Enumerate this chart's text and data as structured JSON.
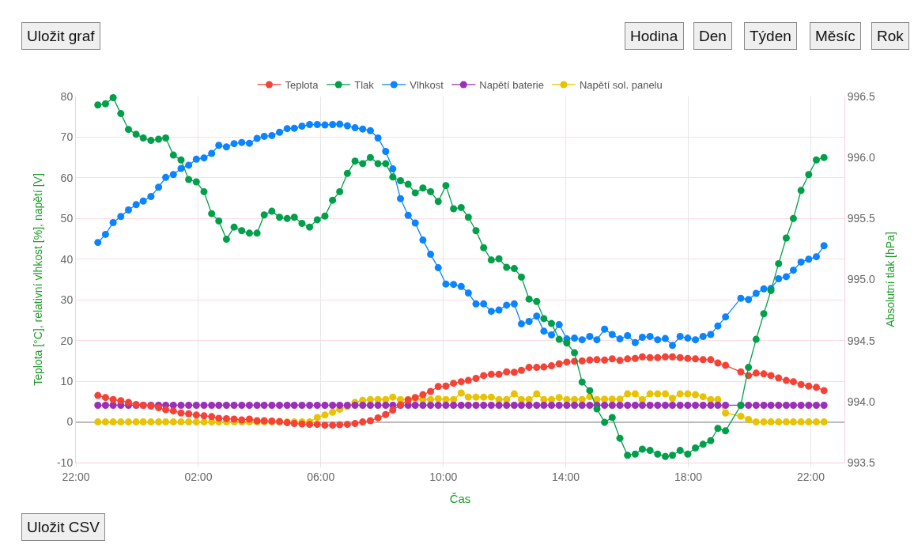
{
  "chart_data": {
    "type": "line",
    "xlabel": "Čas",
    "ylabel": "Teplota [°C], relativní vlhkost [%], napětí [V]",
    "y2label": "Absolutní tlak [hPa]",
    "annotations": [
      "Uložit graf",
      "Hodina",
      "Den",
      "Týden",
      "Měsíc",
      "Rok",
      "Uložit CSV"
    ],
    "x": [
      "--01-01T22:43",
      "--01-01T22:58",
      "--01-01T23:13",
      "--01-01T23:28",
      "--01-01T23:43",
      "--01-01T23:58",
      "--01-02T00:12",
      "--01-02T00:27",
      "--01-02T00:42",
      "--01-02T00:56",
      "--01-02T01:11",
      "--01-02T01:26",
      "--01-02T01:41",
      "--01-02T01:56",
      "--01-02T02:11",
      "--01-02T02:26",
      "--01-02T02:40",
      "--01-02T02:55",
      "--01-02T03:10",
      "--01-02T03:25",
      "--01-02T03:40",
      "--01-02T03:55",
      "--01-02T04:09",
      "--01-02T04:24",
      "--01-02T04:39",
      "--01-02T04:54",
      "--01-02T05:08",
      "--01-02T05:23",
      "--01-02T05:38",
      "--01-02T05:53",
      "--01-02T06:08",
      "--01-02T06:23",
      "--01-02T06:37",
      "--01-02T06:52",
      "--01-02T07:07",
      "--01-02T07:22",
      "--01-02T07:37",
      "--01-02T07:52",
      "--01-02T08:07",
      "--01-02T08:21",
      "--01-02T08:36",
      "--01-02T08:51",
      "--01-02T09:05",
      "--01-02T09:20",
      "--01-02T09:35",
      "--01-02T09:50",
      "--01-02T10:05",
      "--01-02T10:20",
      "--01-02T10:35",
      "--01-02T10:49",
      "--01-02T11:04",
      "--01-02T11:19",
      "--01-02T11:34",
      "--01-02T11:49",
      "--01-02T12:04",
      "--01-02T12:19",
      "--01-02T12:33",
      "--01-02T12:48",
      "--01-02T13:03",
      "--01-02T13:17",
      "--01-02T13:32",
      "--01-02T13:47",
      "--01-02T14:02",
      "--01-02T14:17",
      "--01-02T14:32",
      "--01-02T14:47",
      "--01-02T15:01",
      "--01-02T15:16",
      "--01-02T15:31",
      "--01-02T15:46",
      "--01-02T16:01",
      "--01-02T16:16",
      "--01-02T16:30",
      "--01-02T16:45",
      "--01-02T17:00",
      "--01-02T17:15",
      "--01-02T17:29",
      "--01-02T17:44",
      "--01-02T17:59",
      "--01-02T18:14",
      "--01-02T18:29",
      "--01-02T18:44",
      "--01-02T18:58",
      "--01-02T19:13",
      "--01-02T19:43",
      "--01-02T19:58",
      "--01-02T20:13",
      "--01-02T20:28",
      "--01-02T20:42",
      "--01-02T20:57",
      "--01-02T21:12",
      "--01-02T21:26",
      "--01-02T21:41",
      "--01-02T21:56",
      "--01-02T22:11",
      "--01-02T22:26"
    ],
    "xlim": [
      "--01-01T22:00",
      "--01-02T23:06"
    ],
    "xticks": [
      {
        "value": "--01-01T22:00",
        "label": "22:00"
      },
      {
        "value": "--01-02T02:00",
        "label": "02:00"
      },
      {
        "value": "--01-02T06:00",
        "label": "06:00"
      },
      {
        "value": "--01-02T10:00",
        "label": "10:00"
      },
      {
        "value": "--01-02T14:00",
        "label": "14:00"
      },
      {
        "value": "--01-02T18:00",
        "label": "18:00"
      },
      {
        "value": "--01-02T22:00",
        "label": "22:00"
      }
    ],
    "ylim": [
      -10,
      80
    ],
    "yticks": [
      -10,
      0,
      10,
      20,
      30,
      40,
      50,
      60,
      70,
      80
    ],
    "y2lim": [
      993.5,
      996.5
    ],
    "y2ticks": [
      993.5,
      {
        "value": 994,
        "label": "994.0"
      },
      994.5,
      {
        "value": 995,
        "label": "995.0"
      },
      995.5,
      {
        "value": 996,
        "label": "996.0"
      },
      996.5
    ],
    "grid": true,
    "legend": "top",
    "marker": "circle",
    "line_style": "solid",
    "series": [
      {
        "name": "Teplota",
        "color": "#f44336",
        "values": [
          6.5,
          6.0,
          5.5,
          5.2,
          4.8,
          4.3,
          4.1,
          3.9,
          3.5,
          3.0,
          2.7,
          2.2,
          2.0,
          1.7,
          1.5,
          1.3,
          0.9,
          0.8,
          0.7,
          0.5,
          0.7,
          0.3,
          0.3,
          0.2,
          0.1,
          -0.2,
          -0.4,
          -0.5,
          -0.6,
          -0.6,
          -0.8,
          -0.8,
          -0.7,
          -0.6,
          -0.4,
          0.0,
          0.3,
          1.0,
          1.8,
          2.9,
          4.2,
          5.4,
          6.0,
          6.7,
          7.5,
          8.7,
          8.8,
          9.5,
          9.9,
          10.2,
          10.7,
          11.4,
          11.7,
          11.7,
          12.3,
          12.2,
          12.7,
          13.4,
          13.4,
          13.5,
          13.8,
          14.3,
          14.7,
          14.9,
          15.0,
          15.2,
          15.3,
          15.2,
          15.5,
          15.1,
          15.5,
          15.6,
          16.0,
          15.8,
          15.8,
          16.0,
          16.0,
          15.8,
          15.6,
          15.5,
          15.3,
          15.3,
          14.5,
          13.9,
          12.3,
          11.4,
          12.0,
          11.8,
          11.4,
          10.8,
          10.2,
          9.9,
          9.2,
          8.8,
          8.5,
          7.7
        ]
      },
      {
        "name": "Tlak",
        "color": "#00a04a",
        "axis": "y2",
        "values": [
          996.43,
          996.44,
          996.49,
          996.36,
          996.23,
          996.19,
          996.16,
          996.14,
          996.15,
          996.16,
          996.02,
          995.98,
          995.82,
          995.8,
          995.72,
          995.54,
          995.48,
          995.33,
          995.43,
          995.4,
          995.38,
          995.38,
          995.53,
          995.56,
          995.51,
          995.5,
          995.51,
          995.46,
          995.43,
          995.49,
          995.52,
          995.65,
          995.72,
          995.87,
          995.97,
          995.95,
          996.0,
          995.95,
          995.95,
          995.84,
          995.81,
          995.78,
          995.71,
          995.75,
          995.72,
          995.64,
          995.77,
          995.58,
          995.59,
          995.51,
          995.4,
          995.26,
          995.16,
          995.17,
          995.1,
          995.09,
          995.02,
          994.84,
          994.82,
          994.68,
          994.64,
          994.51,
          994.48,
          994.4,
          994.16,
          994.09,
          993.94,
          993.83,
          993.87,
          993.7,
          993.56,
          993.57,
          993.61,
          993.6,
          993.57,
          993.55,
          993.56,
          993.6,
          993.57,
          993.62,
          993.65,
          993.68,
          993.78,
          993.76,
          993.97,
          994.28,
          994.51,
          994.72,
          994.91,
          995.13,
          995.34,
          995.5,
          995.73,
          995.86,
          995.98,
          996.0
        ]
      },
      {
        "name": "Vlhkost",
        "color": "#0a84ff",
        "values": [
          44.1,
          46.1,
          49.0,
          50.5,
          52.1,
          53.4,
          54.3,
          55.4,
          57.7,
          60.1,
          60.8,
          62.3,
          63.1,
          64.6,
          64.9,
          66.0,
          68.0,
          67.6,
          68.4,
          68.7,
          68.5,
          69.7,
          70.2,
          70.4,
          71.2,
          72.1,
          72.2,
          72.7,
          73.1,
          73.1,
          73.0,
          73.1,
          73.2,
          72.8,
          72.3,
          72.0,
          71.6,
          69.8,
          66.5,
          62.2,
          54.9,
          50.8,
          48.9,
          44.7,
          41.2,
          37.9,
          33.9,
          33.8,
          33.3,
          31.7,
          29.0,
          29.0,
          27.2,
          27.5,
          28.7,
          29.0,
          24.1,
          24.7,
          26.0,
          22.3,
          21.4,
          23.9,
          20.4,
          20.6,
          20.2,
          21.0,
          20.2,
          22.8,
          21.5,
          20.4,
          21.2,
          19.5,
          20.8,
          21.0,
          20.2,
          20.5,
          18.8,
          21.0,
          20.6,
          20.2,
          21.0,
          21.5,
          23.6,
          25.8,
          30.4,
          30.1,
          31.6,
          32.7,
          32.8,
          35.2,
          35.7,
          37.3,
          39.3,
          40.0,
          40.6,
          43.3
        ]
      },
      {
        "name": "Napětí baterie",
        "color": "#9c2fb8",
        "values": [
          4.1,
          4.1,
          4.1,
          4.1,
          4.1,
          4.1,
          4.1,
          4.1,
          4.1,
          4.1,
          4.1,
          4.1,
          4.1,
          4.1,
          4.1,
          4.1,
          4.1,
          4.1,
          4.1,
          4.1,
          4.1,
          4.1,
          4.1,
          4.1,
          4.1,
          4.1,
          4.1,
          4.1,
          4.1,
          4.1,
          4.1,
          4.1,
          4.1,
          4.1,
          4.1,
          4.1,
          4.1,
          4.1,
          4.1,
          4.1,
          4.1,
          4.1,
          4.1,
          4.1,
          4.1,
          4.1,
          4.1,
          4.1,
          4.1,
          4.1,
          4.1,
          4.1,
          4.1,
          4.1,
          4.1,
          4.1,
          4.1,
          4.1,
          4.1,
          4.1,
          4.1,
          4.1,
          4.1,
          4.1,
          4.1,
          4.1,
          4.1,
          4.1,
          4.1,
          4.1,
          4.1,
          4.1,
          4.1,
          4.1,
          4.1,
          4.1,
          4.1,
          4.1,
          4.1,
          4.1,
          4.1,
          4.1,
          4.1,
          4.1,
          4.1,
          4.1,
          4.1,
          4.1,
          4.1,
          4.1,
          4.1,
          4.1,
          4.1,
          4.1,
          4.1,
          4.1
        ]
      },
      {
        "name": "Napětí sol. panelu",
        "color": "#e8c300",
        "values": [
          0,
          0,
          0,
          0,
          0,
          0,
          0,
          0,
          0,
          0,
          0,
          0,
          0,
          0,
          0,
          0,
          0,
          0,
          0,
          0,
          0,
          0,
          0,
          0,
          0,
          0,
          0,
          0,
          0,
          1.1,
          1.7,
          2.4,
          3.1,
          3.8,
          4.8,
          5.3,
          5.5,
          5.5,
          5.5,
          6.1,
          5.5,
          5.5,
          5.7,
          5.5,
          5.5,
          5.7,
          5.5,
          5.5,
          7.1,
          6.1,
          6.1,
          6.1,
          6.1,
          5.5,
          5.5,
          6.9,
          5.5,
          5.5,
          6.9,
          5.5,
          5.5,
          6.0,
          5.5,
          5.5,
          5.5,
          6.2,
          5.5,
          5.6,
          5.6,
          5.6,
          6.9,
          6.9,
          5.5,
          6.9,
          6.9,
          6.9,
          5.8,
          6.9,
          6.9,
          6.7,
          6.2,
          5.5,
          5.5,
          2.2,
          1.4,
          0.6,
          0,
          0,
          0,
          0,
          0,
          0,
          0,
          0,
          0,
          0
        ]
      }
    ]
  }
}
